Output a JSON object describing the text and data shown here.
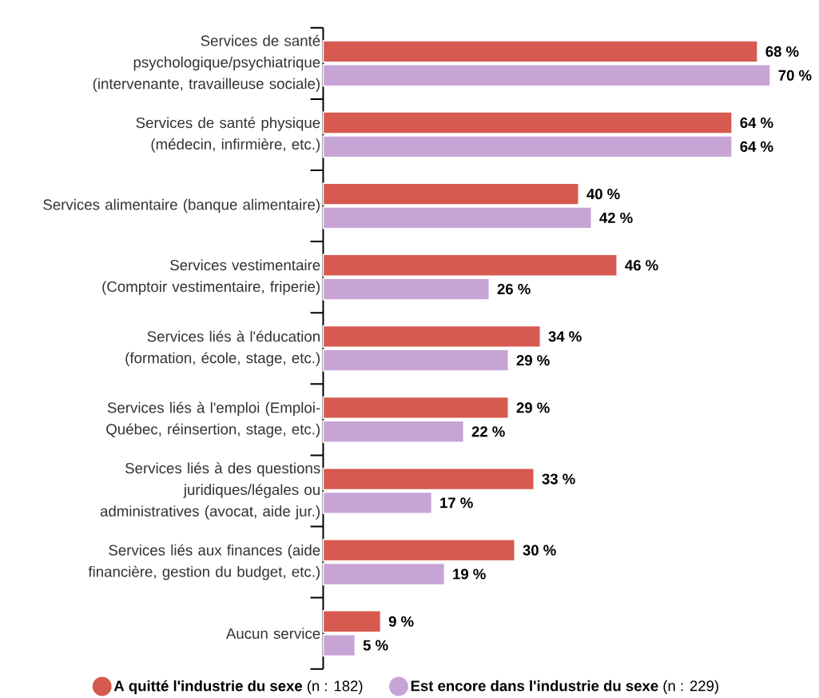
{
  "chart_data": {
    "type": "bar",
    "orientation": "horizontal",
    "categories": [
      "Services de santé psychologique/psychiatrique (intervenante, travailleuse sociale)",
      "Services de santé physique (médecin, infirmière, etc.)",
      "Services alimentaire (banque alimentaire)",
      "Services vestimentaire (Comptoir vestimentaire, friperie)",
      "Services liés à l'éducation (formation, école, stage, etc.)",
      "Services liés à l'emploi (Emploi-Québec, réinsertion, stage, etc.)",
      "Services liés à des questions juridiques/légales ou administratives (avocat, aide jur.)",
      "Services liés aux finances (aide financière, gestion du budget, etc.)",
      "Aucun service"
    ],
    "series": [
      {
        "name": "**A quitté l'industrie du sexe** (n : 182)",
        "color": "#d65a50",
        "values": [
          68,
          64,
          40,
          46,
          34,
          29,
          33,
          30,
          9
        ],
        "value_labels": [
          "68 %",
          "64 %",
          "40 %",
          "46 %",
          "34 %",
          "29 %",
          "33 %",
          "30 %",
          "9 %"
        ]
      },
      {
        "name": "**Est encore dans l'industrie du sexe** (n : 229)",
        "color": "#c7a4d6",
        "values": [
          70,
          64,
          42,
          26,
          29,
          22,
          17,
          19,
          5
        ],
        "value_labels": [
          "70 %",
          "64 %",
          "42 %",
          "26 %",
          "29 %",
          "22 %",
          "17 %",
          "19 %",
          "5 %"
        ]
      }
    ],
    "legend": "bottom"
  }
}
